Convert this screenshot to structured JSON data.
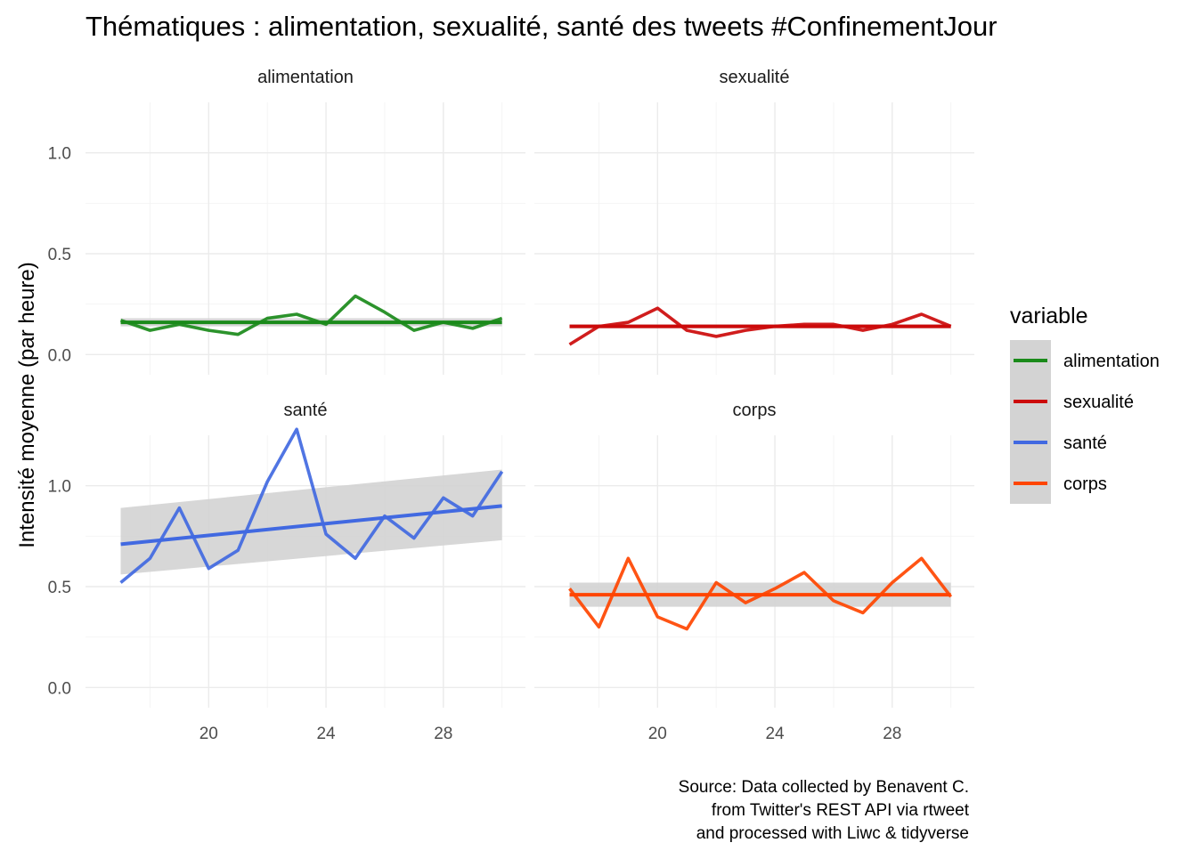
{
  "chart_data": {
    "type": "line",
    "title": "Thématiques : alimentation, sexualité, santé des tweets #ConfinementJour",
    "ylabel": "Intensité moyenne (par heure)",
    "xlabel": "",
    "legend": {
      "title": "variable",
      "position": "right"
    },
    "caption": [
      "Source: Data collected by Benavent C.",
      "from Twitter's REST API via rtweet",
      "and processed with Liwc & tidyverse"
    ],
    "x_ticks": [
      20,
      24,
      28
    ],
    "x_tick_labels": [
      "20",
      "24",
      "28"
    ],
    "xlim": [
      15.8,
      30.8
    ],
    "y_ticks_top": [
      0.0,
      0.5,
      1.0
    ],
    "y_tick_labels_top": [
      "0.0",
      "0.5",
      "1.0"
    ],
    "ylim_top": [
      -0.1,
      1.25
    ],
    "y_ticks_bottom": [
      0.0,
      0.5,
      1.0
    ],
    "y_tick_labels_bottom": [
      "0.0",
      "0.5",
      "1.0"
    ],
    "ylim_bottom": [
      -0.1,
      1.25
    ],
    "grid": true,
    "facets": [
      {
        "name": "alimentation",
        "color": "#1a8a1a",
        "x": [
          17,
          18,
          19,
          20,
          21,
          22,
          23,
          24,
          25,
          26,
          27,
          28,
          29,
          30
        ],
        "values": [
          0.17,
          0.12,
          0.15,
          0.12,
          0.1,
          0.18,
          0.2,
          0.15,
          0.29,
          0.21,
          0.12,
          0.16,
          0.13,
          0.18
        ],
        "trend": [
          0.16,
          0.16
        ],
        "band_low": [
          0.14,
          0.14
        ],
        "band_high": [
          0.18,
          0.18
        ]
      },
      {
        "name": "sexualité",
        "color": "#cc0a0a",
        "x": [
          17,
          18,
          19,
          20,
          21,
          22,
          23,
          24,
          25,
          26,
          27,
          28,
          29,
          30
        ],
        "values": [
          0.05,
          0.14,
          0.16,
          0.23,
          0.12,
          0.09,
          0.12,
          0.14,
          0.15,
          0.15,
          0.12,
          0.15,
          0.2,
          0.14
        ],
        "trend": [
          0.14,
          0.14
        ],
        "band_low": [
          0.13,
          0.13
        ],
        "band_high": [
          0.15,
          0.15
        ]
      },
      {
        "name": "santé",
        "color": "#4169e1",
        "x": [
          17,
          18,
          19,
          20,
          21,
          22,
          23,
          24,
          25,
          26,
          27,
          28,
          29,
          30
        ],
        "values": [
          0.52,
          0.64,
          0.89,
          0.59,
          0.68,
          1.02,
          1.28,
          0.76,
          0.64,
          0.85,
          0.74,
          0.94,
          0.85,
          1.07
        ],
        "trend": [
          0.71,
          0.9
        ],
        "band_low": [
          0.56,
          0.73
        ],
        "band_high": [
          0.89,
          1.08
        ]
      },
      {
        "name": "corps",
        "color": "#ff4500",
        "x": [
          17,
          18,
          19,
          20,
          21,
          22,
          23,
          24,
          25,
          26,
          27,
          28,
          29,
          30
        ],
        "values": [
          0.49,
          0.3,
          0.64,
          0.35,
          0.29,
          0.52,
          0.42,
          0.49,
          0.57,
          0.43,
          0.37,
          0.52,
          0.64,
          0.45
        ],
        "trend": [
          0.46,
          0.46
        ],
        "band_low": [
          0.4,
          0.4
        ],
        "band_high": [
          0.52,
          0.52
        ]
      }
    ]
  },
  "colors": {
    "band": "#d3d3d3",
    "grid_major": "#ebebeb",
    "grid_minor": "#f3f3f3"
  }
}
